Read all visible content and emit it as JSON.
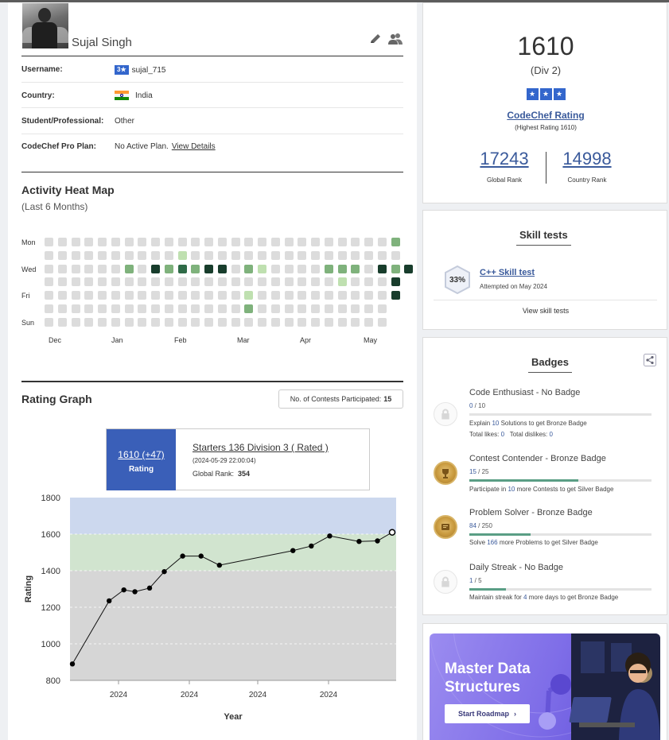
{
  "profile": {
    "name": "Sujal Singh",
    "info": [
      {
        "label": "Username:",
        "badge": "3★",
        "value": "sujal_715"
      },
      {
        "label": "Country:",
        "value": "India"
      },
      {
        "label": "Student/Professional:",
        "value": "Other"
      },
      {
        "label": "CodeChef Pro Plan:",
        "value": "No Active Plan.",
        "link": "View Details"
      }
    ]
  },
  "heatmap": {
    "title": "Activity Heat Map",
    "subtitle": "(Last 6 Months)",
    "day_labels": [
      "Mon",
      "Wed",
      "Fri",
      "Sun"
    ],
    "month_labels": [
      "Dec",
      "Jan",
      "Feb",
      "Mar",
      "Apr",
      "May"
    ],
    "colors": {
      "0": "#dcdcdc",
      "1": "#bfe0b0",
      "2": "#7fb27c",
      "3": "#2f6b47",
      "4": "#183d2c"
    },
    "grid": [
      [
        0,
        0,
        0,
        0,
        0,
        0,
        0,
        0,
        0,
        0,
        0,
        0,
        0,
        0,
        0,
        0,
        0,
        0,
        0,
        0,
        0,
        0,
        0,
        0,
        0,
        0,
        2
      ],
      [
        0,
        0,
        0,
        0,
        0,
        0,
        0,
        0,
        0,
        0,
        1,
        0,
        0,
        0,
        0,
        0,
        0,
        0,
        0,
        0,
        0,
        0,
        0,
        0,
        0,
        0,
        0
      ],
      [
        0,
        0,
        0,
        0,
        0,
        0,
        2,
        0,
        4,
        2,
        3,
        2,
        4,
        4,
        0,
        2,
        1,
        0,
        0,
        0,
        0,
        2,
        2,
        2,
        0,
        4,
        2,
        4
      ],
      [
        0,
        0,
        0,
        0,
        0,
        0,
        0,
        0,
        0,
        0,
        0,
        0,
        0,
        0,
        0,
        0,
        0,
        0,
        0,
        0,
        0,
        0,
        1,
        0,
        0,
        0,
        4
      ],
      [
        0,
        0,
        0,
        0,
        0,
        0,
        0,
        0,
        0,
        0,
        0,
        0,
        0,
        0,
        0,
        1,
        0,
        0,
        0,
        0,
        0,
        0,
        0,
        0,
        0,
        0,
        4
      ],
      [
        0,
        0,
        0,
        0,
        0,
        0,
        0,
        0,
        0,
        0,
        0,
        0,
        0,
        0,
        0,
        2,
        0,
        0,
        0,
        0,
        0,
        0,
        0,
        0,
        0,
        0
      ],
      [
        0,
        0,
        0,
        0,
        0,
        0,
        0,
        0,
        0,
        0,
        0,
        0,
        0,
        0,
        0,
        0,
        0,
        0,
        0,
        0,
        0,
        0,
        0,
        0,
        0,
        0
      ]
    ]
  },
  "rating_graph": {
    "title": "Rating Graph",
    "contests_label": "No. of Contests Participated:",
    "contests_count": "15",
    "tooltip": {
      "rating": "1610 (+47)",
      "rating_label": "Rating",
      "contest": "Starters 136 Division 3 ( Rated )",
      "date": "(2024-05-29 22:00:04)",
      "rank_label": "Global Rank:",
      "rank": "354"
    }
  },
  "chart_data": {
    "type": "line",
    "xlabel": "Year",
    "ylabel": "Rating",
    "ylim": [
      800,
      1800
    ],
    "y_ticks": [
      800,
      1000,
      1200,
      1400,
      1600,
      1800
    ],
    "x_tick_labels": [
      "2024",
      "2024",
      "2024",
      "2024"
    ],
    "bands": [
      {
        "from": 800,
        "to": 1400,
        "color": "#d6d6d6"
      },
      {
        "from": 1400,
        "to": 1600,
        "color": "#d1e4cf"
      },
      {
        "from": 1600,
        "to": 1800,
        "color": "#ccd8ee"
      }
    ],
    "x": [
      0,
      10,
      14,
      17,
      21,
      25,
      30,
      35,
      40,
      60,
      65,
      70,
      78,
      83,
      87
    ],
    "values": [
      890,
      1235,
      1295,
      1285,
      1305,
      1395,
      1480,
      1480,
      1430,
      1510,
      1535,
      1590,
      1560,
      1563,
      1610
    ]
  },
  "summary": {
    "rating": "1610",
    "division": "(Div 2)",
    "stars": [
      "★",
      "★",
      "★"
    ],
    "rating_link": "CodeChef Rating",
    "highest": "(Highest Rating 1610)",
    "global_rank": "17243",
    "global_rank_label": "Global Rank",
    "country_rank": "14998",
    "country_rank_label": "Country Rank"
  },
  "skill_tests": {
    "title": "Skill tests",
    "percent": "33%",
    "test_name": "C++ Skill test",
    "attempted": "Attempted on May 2024",
    "view_all": "View skill tests"
  },
  "badges": {
    "title": "Badges",
    "items": [
      {
        "title": "Code Enthusiast - No Badge",
        "current": "0",
        "total": " / 10",
        "progress": 0.0,
        "desc_pre": "Explain ",
        "desc_num": "10",
        "desc_post": " Solutions to get Bronze Badge",
        "extra": "Total likes: ",
        "likes": "0",
        "extra2": "Total dislikes: ",
        "dislikes": "0",
        "tier": "none"
      },
      {
        "title": "Contest Contender - Bronze Badge",
        "current": "15",
        "total": " / 25",
        "progress": 0.6,
        "desc_pre": "Participate in ",
        "desc_num": "10",
        "desc_post": " more Contests to get Silver Badge",
        "tier": "bronze"
      },
      {
        "title": "Problem Solver - Bronze Badge",
        "current": "84",
        "total": " / 250",
        "progress": 0.336,
        "desc_pre": "Solve ",
        "desc_num": "166",
        "desc_post": " more Problems to get Silver Badge",
        "tier": "bronze"
      },
      {
        "title": "Daily Streak - No Badge",
        "current": "1",
        "total": " / 5",
        "progress": 0.2,
        "desc_pre": "Maintain streak for ",
        "desc_num": "4",
        "desc_post": " more days to get Bronze Badge",
        "tier": "none"
      }
    ]
  },
  "banner": {
    "line1": "Master Data",
    "line2": "Structures",
    "cta": "Start Roadmap",
    "cta_arrow": "›"
  }
}
